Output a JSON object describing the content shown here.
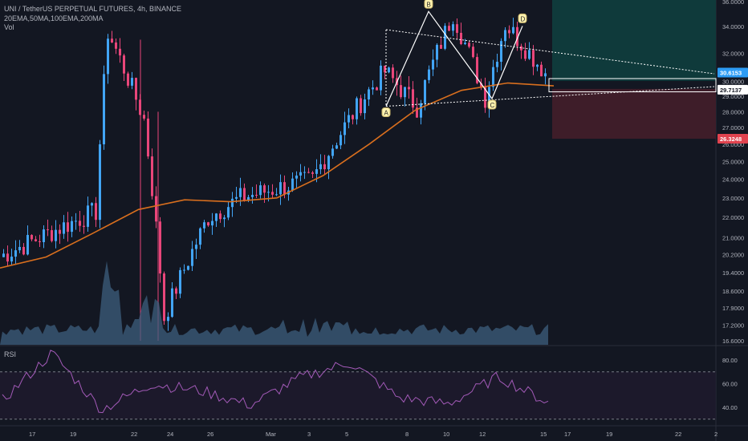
{
  "header": {
    "title": "UNI / TetherUS PERPETUAL FUTURES, 4h, BINANCE",
    "indicators": "20EMA,50MA,100EMA,200MA",
    "volume_label": "Vol",
    "rsi_label": "RSI"
  },
  "colors": {
    "background": "#131722",
    "up": "#42a5f5",
    "down": "#e9467a",
    "ma": "#d96f1e",
    "rsi": "#a35ab8",
    "target_zone": "#0f3a3b",
    "stop_zone": "#3e1d29",
    "price_badge_current": "#2d9cf5",
    "price_badge_stop": "#e0434f"
  },
  "chart_data": {
    "type": "candlestick",
    "symbol": "UNI / TetherUS PERPETUAL FUTURES",
    "timeframe": "4h",
    "exchange": "BINANCE",
    "price_axis_ticks": [
      "36.0000",
      "34.0000",
      "32.0000",
      "30.0000",
      "29.0000",
      "28.0000",
      "27.0000",
      "26.0000",
      "25.0000",
      "24.0000",
      "23.0000",
      "22.0000",
      "21.0000",
      "20.2000",
      "19.4000",
      "18.6000",
      "17.9000",
      "17.2000",
      "16.6000"
    ],
    "date_axis_ticks": [
      "17",
      "19",
      "22",
      "24",
      "26",
      "Mar",
      "3",
      "5",
      "8",
      "10",
      "12",
      "15",
      "17",
      "19",
      "22",
      "2"
    ],
    "rsi_axis_ticks": [
      "80.00",
      "60.00",
      "40.00"
    ],
    "price_labels": {
      "current": "30.6153",
      "entry": "29.7137",
      "stop": "26.3248"
    },
    "pattern_points": [
      {
        "label": "A",
        "date": "Mar 7",
        "price": 28.35
      },
      {
        "label": "B",
        "date": "Mar 9",
        "price": 35.2
      },
      {
        "label": "C",
        "date": "Mar 12",
        "price": 28.85
      },
      {
        "label": "D",
        "date": "Mar 14",
        "price": 34.05
      }
    ],
    "key_prices": [
      20.1,
      33.6,
      17.5,
      31.2,
      20.6,
      29.0,
      30.7,
      28.3,
      34.6,
      32.4,
      30.6
    ],
    "ma_key_values": [
      19.6,
      20.1,
      21.2,
      22.4,
      22.9,
      22.8,
      23.0,
      24.2,
      26.0,
      28.1,
      29.4,
      29.9,
      29.7
    ],
    "rsi_key_values": [
      46,
      86,
      38,
      60,
      54,
      42,
      65,
      78,
      48,
      43,
      66,
      44
    ],
    "volume_spikes": [
      {
        "date": "Feb 20",
        "level": "high"
      },
      {
        "date": "Feb 23",
        "level": "high"
      }
    ],
    "log_scale": true,
    "grid": false,
    "legend": "top-left"
  }
}
